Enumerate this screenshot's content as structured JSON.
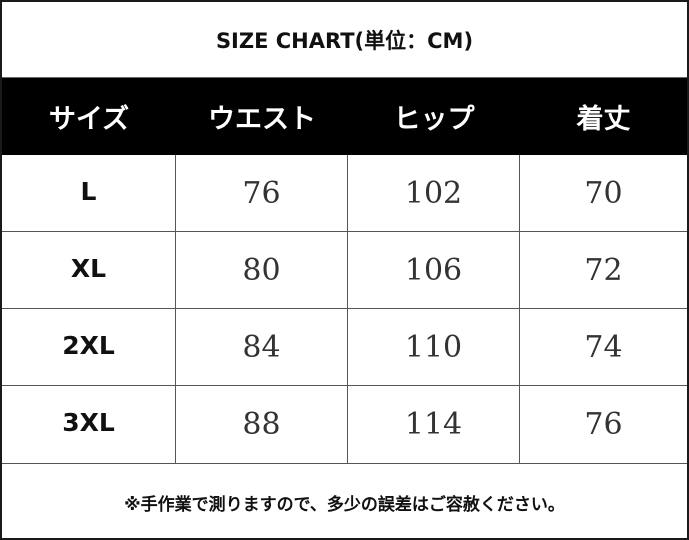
{
  "title": "SIZE CHART(単位：CM)",
  "table": {
    "headers": [
      "サイズ",
      "ウエスト",
      "ヒップ",
      "着丈"
    ],
    "rows": [
      [
        "L",
        "76",
        "102",
        "70"
      ],
      [
        "XL",
        "80",
        "106",
        "72"
      ],
      [
        "2XL",
        "84",
        "110",
        "74"
      ],
      [
        "3XL",
        "88",
        "114",
        "76"
      ]
    ]
  },
  "note": "※手作業で測りますので、多少の誤差はご容赦ください。",
  "colors": {
    "header_background": "#000000",
    "header_text": "#ffffff",
    "border": "#1a1a1a"
  }
}
